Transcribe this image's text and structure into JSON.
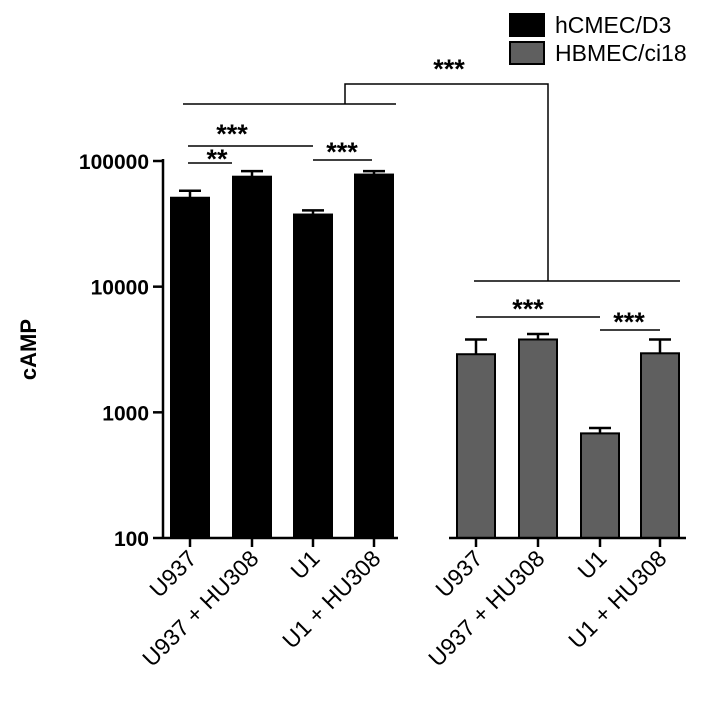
{
  "chart_data": {
    "type": "bar",
    "ylabel": "cAMP",
    "yscale": "log",
    "ylim": [
      100,
      100000
    ],
    "yticks": [
      "100",
      "1000",
      "10000",
      "100000"
    ],
    "ytick_values": [
      100,
      1000,
      10000,
      100000
    ],
    "legend_position": "top-right",
    "legend": [
      {
        "name": "hCMEC/D3",
        "color": "#000000"
      },
      {
        "name": "HBMEC/ci18",
        "color": "#5f5f5f"
      }
    ],
    "groups": [
      {
        "series": "hCMEC/D3",
        "color": "#000000",
        "categories": [
          "U937",
          "U937 + HU308",
          "U1",
          "U1 + HU308"
        ],
        "values": [
          51000,
          75000,
          37500,
          78000
        ],
        "errors": [
          58000,
          83000,
          40500,
          83000
        ]
      },
      {
        "series": "HBMEC/ci18",
        "color": "#5f5f5f",
        "categories": [
          "U937",
          "U937 + HU308",
          "U1",
          "U1 + HU308"
        ],
        "values": [
          2900,
          3800,
          680,
          2950
        ],
        "errors": [
          3800,
          4200,
          750,
          3800
        ]
      }
    ],
    "significance": [
      {
        "label": "***",
        "between": "hCMEC/D3 vs HBMEC/ci18"
      },
      {
        "label": "**",
        "between": "U937 vs U937 + HU308 (hCMEC/D3)"
      },
      {
        "label": "***",
        "between": "U937 vs U1 (hCMEC/D3)"
      },
      {
        "label": "***",
        "between": "U1 vs U1 + HU308 (hCMEC/D3)"
      },
      {
        "label": "***",
        "between": "U937 vs U1 (HBMEC/ci18)"
      },
      {
        "label": "***",
        "between": "U1 vs U1 + HU308 (HBMEC/ci18)"
      }
    ]
  }
}
